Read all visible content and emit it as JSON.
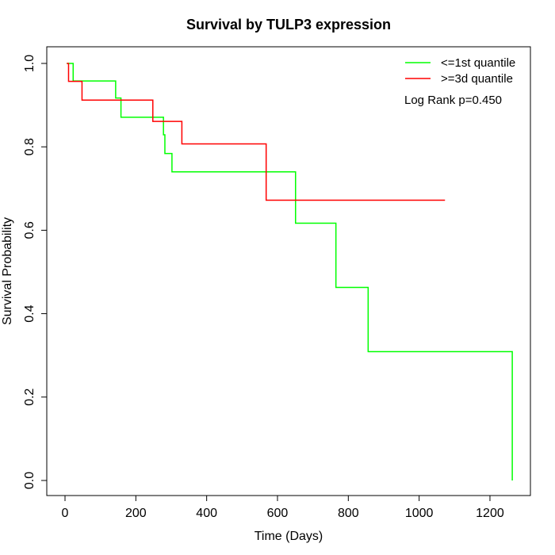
{
  "chart_data": {
    "type": "line",
    "title": "Survival by TULP3 expression",
    "xlabel": "Time (Days)",
    "ylabel": "Survival Probability",
    "xlim": [
      0,
      1265
    ],
    "ylim": [
      0,
      1
    ],
    "xticks": [
      0,
      200,
      400,
      600,
      800,
      1000,
      1200
    ],
    "yticks": [
      0.0,
      0.2,
      0.4,
      0.6,
      0.8,
      1.0
    ],
    "ytick_labels": [
      "0.0",
      "0.2",
      "0.4",
      "0.6",
      "0.8",
      "1.0"
    ],
    "grid": false,
    "legend_position": "top-right",
    "annotation": "Log Rank p=0.450",
    "series": [
      {
        "name": "<=1st quantile",
        "color": "#00ff00",
        "step": true,
        "x": [
          5,
          23,
          143,
          158,
          278,
          282,
          285,
          302,
          651,
          765,
          856,
          1263,
          1263
        ],
        "y": [
          1.0,
          0.958,
          0.917,
          0.871,
          0.829,
          0.784,
          0.784,
          0.74,
          0.617,
          0.463,
          0.309,
          0.309,
          0.0
        ]
      },
      {
        "name": ">=3d quantile",
        "color": "#ff0000",
        "step": true,
        "x": [
          5,
          10,
          48,
          248,
          330,
          568,
          1073
        ],
        "y": [
          1.0,
          0.957,
          0.912,
          0.861,
          0.807,
          0.672,
          0.672
        ]
      }
    ]
  }
}
